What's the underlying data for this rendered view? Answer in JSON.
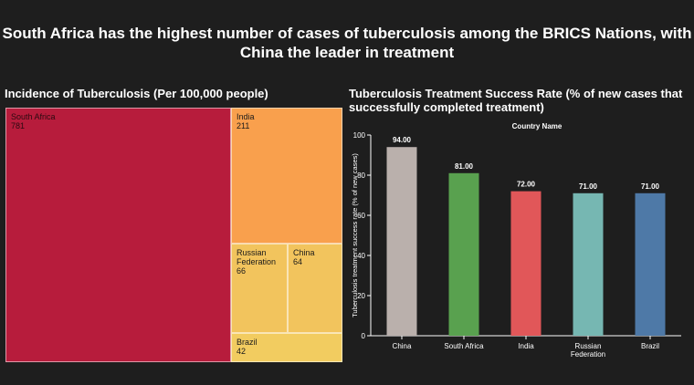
{
  "title": "South Africa has the highest number of cases of tuberculosis among the BRICS Nations, with China the leader in treatment",
  "treemap_title": "Incidence of Tuberculosis (Per 100,000 people)",
  "bar_title": "Tuberculosis Treatment Success Rate (% of new cases that successfully completed treatment)",
  "chart_data": [
    {
      "type": "treemap",
      "title": "Incidence of Tuberculosis (Per 100,000 people)",
      "items": [
        {
          "label": "South Africa",
          "value": 781,
          "color": "#b71c3c"
        },
        {
          "label": "India",
          "value": 211,
          "color": "#f9a04d"
        },
        {
          "label": "Russian Federation",
          "value": 66,
          "color": "#f2c45d"
        },
        {
          "label": "China",
          "value": 64,
          "color": "#f2c45d"
        },
        {
          "label": "Brazil",
          "value": 42,
          "color": "#f2cc60"
        }
      ]
    },
    {
      "type": "bar",
      "title": "Tuberculosis Treatment Success Rate (% of new cases that successfully completed treatment)",
      "legend_title": "Country Name",
      "ylabel": "Tuberculosis treatment success rate (% of new cases)",
      "xlabel": "",
      "ylim": [
        0,
        100
      ],
      "yticks": [
        0,
        20,
        40,
        60,
        80,
        100
      ],
      "categories": [
        "China",
        "South Africa",
        "India",
        "Russian Federation",
        "Brazil"
      ],
      "values": [
        94.0,
        81.0,
        72.0,
        71.0,
        71.0
      ],
      "value_labels": [
        "94.00",
        "81.00",
        "72.00",
        "71.00",
        "71.00"
      ],
      "colors": [
        "#bab0ac",
        "#59a14f",
        "#e15759",
        "#76b7b2",
        "#4e79a7"
      ]
    }
  ]
}
